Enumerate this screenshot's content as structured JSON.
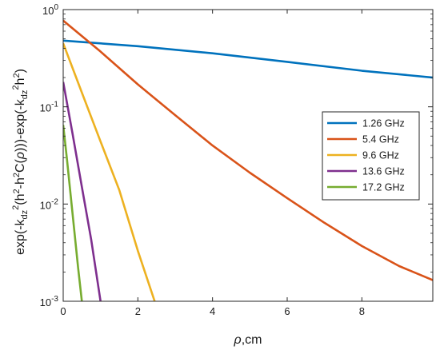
{
  "chart_data": {
    "type": "line",
    "x_scale": "linear",
    "y_scale": "log",
    "xlim": [
      0,
      9.9
    ],
    "ylim": [
      0.001,
      1
    ],
    "xlabel": "ρ,cm",
    "ylabel": "exp(-k_dz²(h²-h²C(ρ)))-exp(-k_dz²h²)",
    "x_ticks": [
      0,
      2,
      4,
      6,
      8
    ],
    "x_tick_labels": [
      "0",
      "2",
      "4",
      "6",
      "8"
    ],
    "y_ticks": [
      0.001,
      0.01,
      0.1,
      1
    ],
    "y_tick_labels": [
      {
        "base": "10",
        "exp": "-3"
      },
      {
        "base": "10",
        "exp": "-2"
      },
      {
        "base": "10",
        "exp": "-1"
      },
      {
        "base": "10",
        "exp": "0"
      }
    ],
    "grid": false,
    "legend_position": "right",
    "series": [
      {
        "name": "1.26 GHz",
        "color": "#0072BD",
        "x": [
          0,
          2,
          4,
          6,
          8,
          9.9
        ],
        "y": [
          0.48,
          0.42,
          0.355,
          0.29,
          0.235,
          0.2
        ]
      },
      {
        "name": "5.4 GHz",
        "color": "#D95319",
        "x": [
          0,
          1,
          2,
          3,
          4,
          5,
          6,
          7,
          8,
          9,
          9.9
        ],
        "y": [
          0.77,
          0.37,
          0.17,
          0.082,
          0.04,
          0.021,
          0.0115,
          0.0064,
          0.0037,
          0.0023,
          0.00165
        ]
      },
      {
        "name": "9.6 GHz",
        "color": "#EDB120",
        "x": [
          0,
          0.5,
          1,
          1.5,
          2,
          2.45
        ],
        "y": [
          0.45,
          0.14,
          0.044,
          0.014,
          0.0033,
          0.001
        ]
      },
      {
        "name": "13.6 GHz",
        "color": "#7E2F8E",
        "x": [
          0,
          0.25,
          0.5,
          0.75,
          1.0
        ],
        "y": [
          0.18,
          0.053,
          0.015,
          0.0043,
          0.001
        ]
      },
      {
        "name": "17.2 GHz",
        "color": "#77AC30",
        "x": [
          0,
          0.1,
          0.2,
          0.3,
          0.4,
          0.5
        ],
        "y": [
          0.065,
          0.029,
          0.0123,
          0.0052,
          0.0022,
          0.001
        ]
      }
    ]
  }
}
